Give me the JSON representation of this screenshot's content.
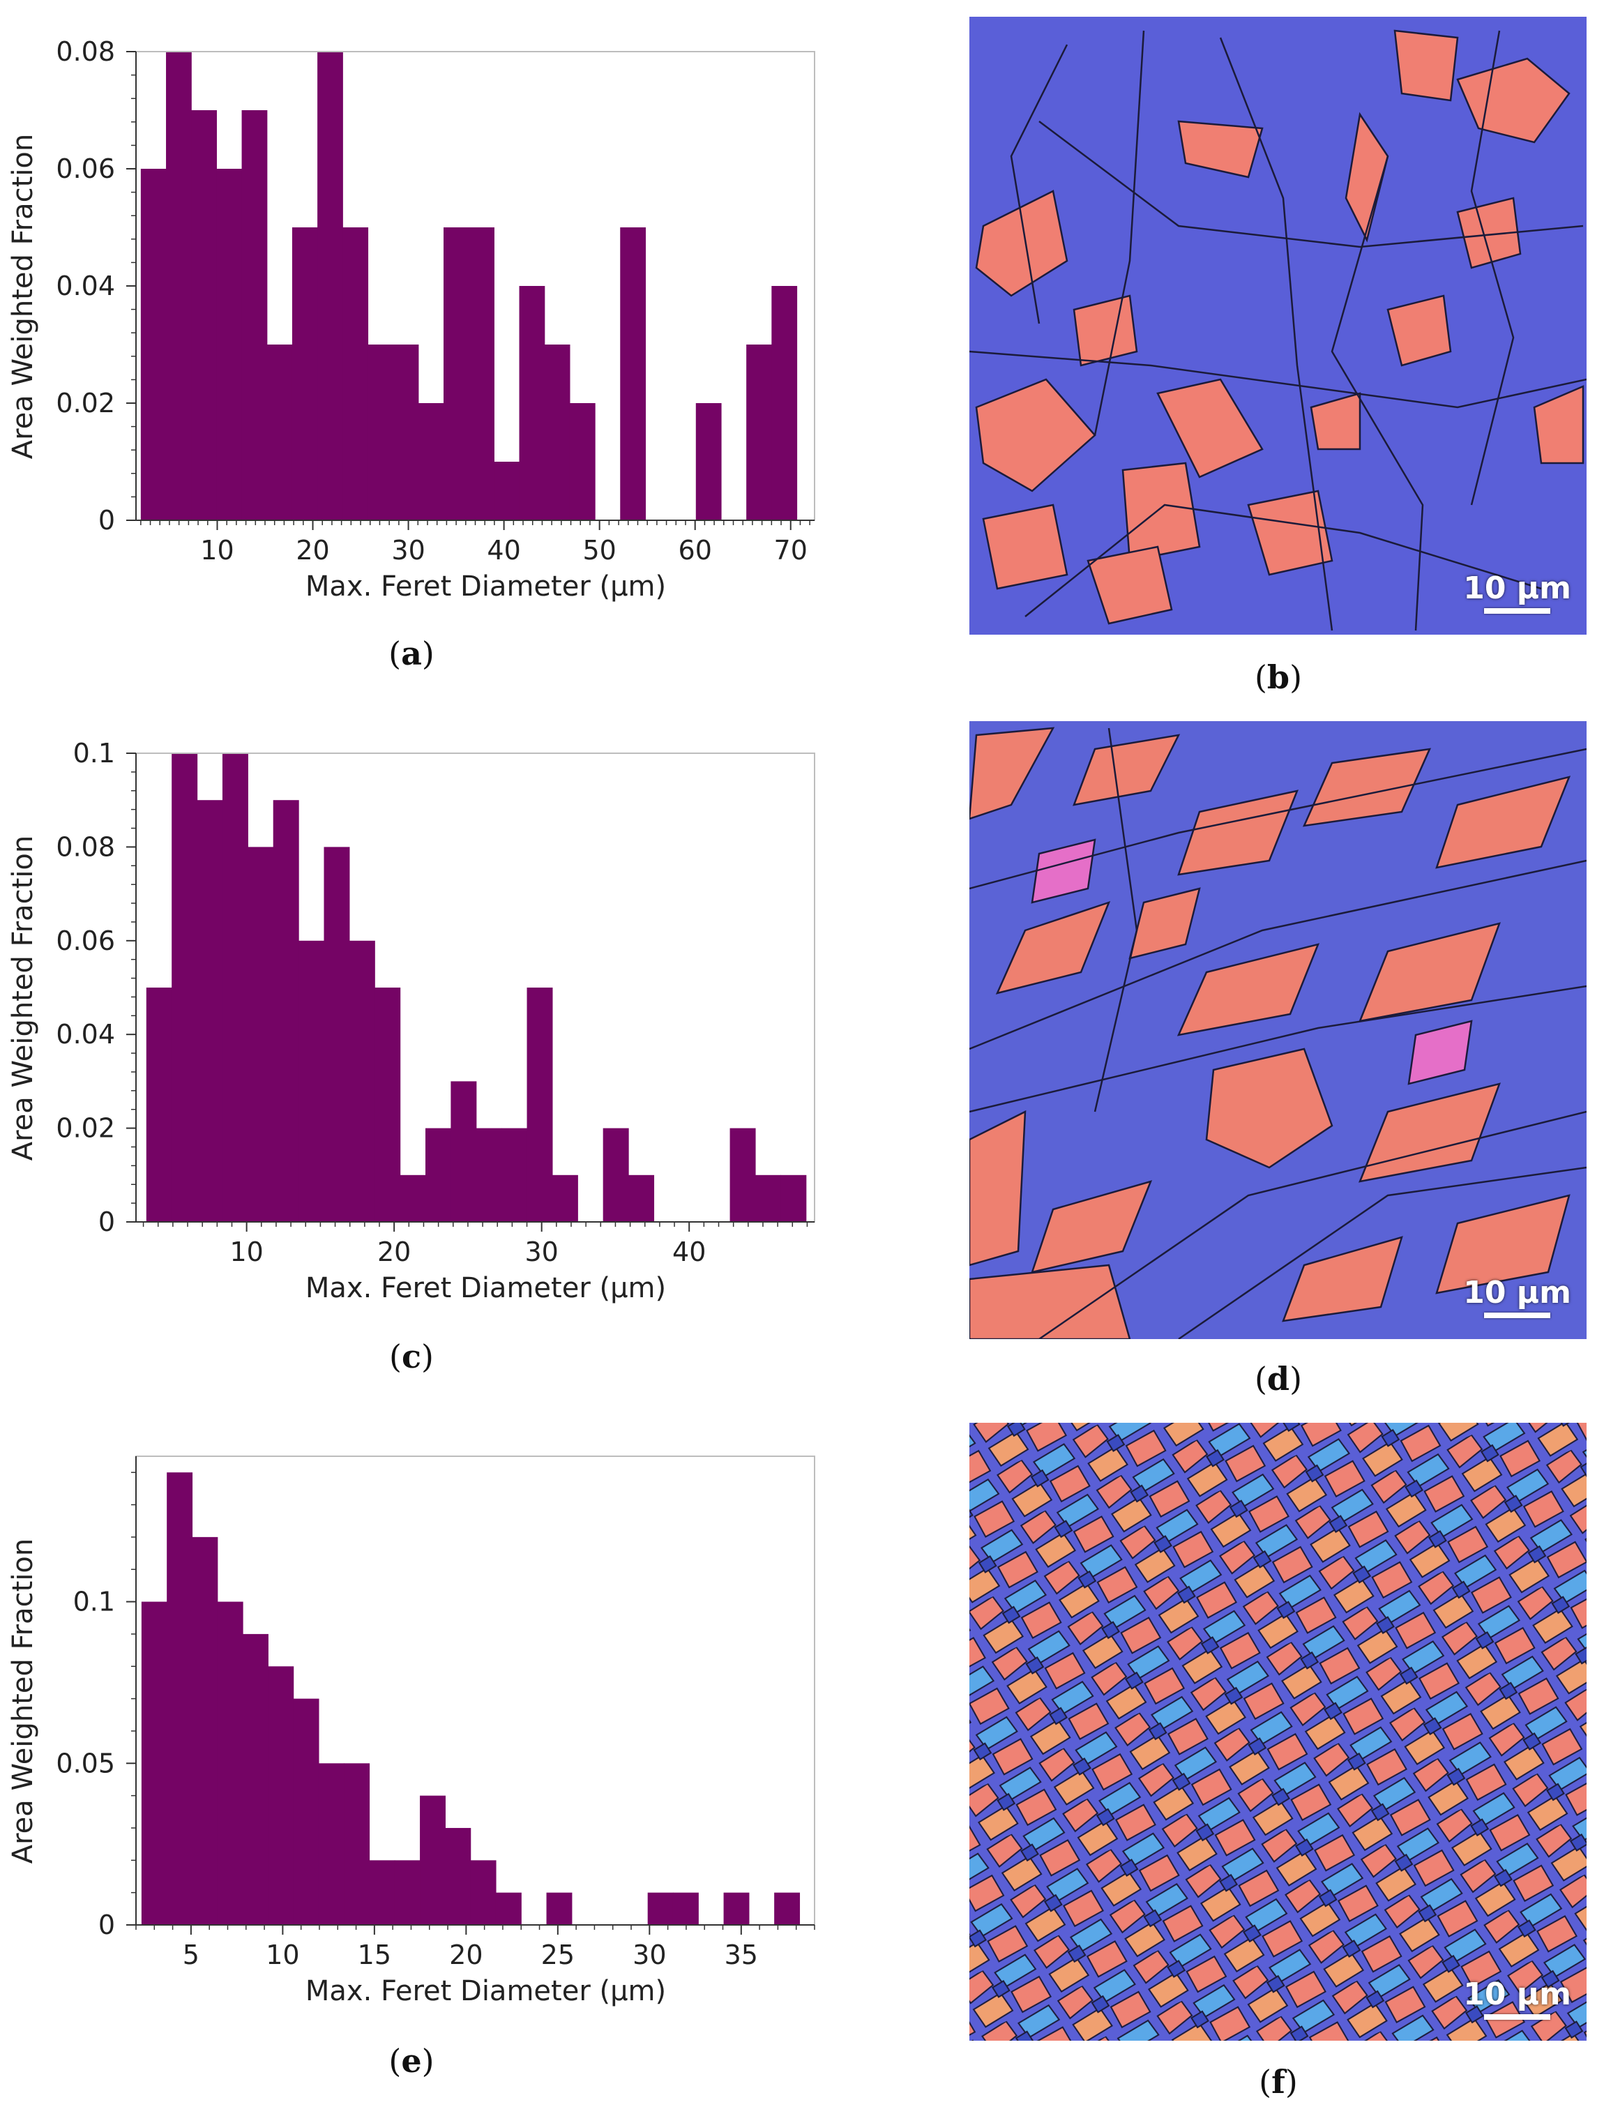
{
  "colors": {
    "bar": "#750465",
    "axis": "#333333"
  },
  "panels": {
    "a": {
      "label": "a"
    },
    "b": {
      "label": "b"
    },
    "c": {
      "label": "c"
    },
    "d": {
      "label": "d"
    },
    "e": {
      "label": "e"
    },
    "f": {
      "label": "f"
    }
  },
  "scale_bar_label": "10 μm",
  "chart_data": [
    {
      "id": "a",
      "type": "bar",
      "histogram": true,
      "xlabel": "Max. Feret Diameter (μm)",
      "ylabel": "Area Weighted Fraction",
      "xlim": [
        1.5,
        72.5
      ],
      "ylim": [
        0,
        0.08
      ],
      "xticks": [
        10,
        20,
        30,
        40,
        50,
        60,
        70
      ],
      "xtick_labels": [
        "10",
        "20",
        "30",
        "40",
        "50",
        "60",
        "70"
      ],
      "yticks": [
        0,
        0.02,
        0.04,
        0.06,
        0.08
      ],
      "ytick_labels": [
        "0",
        "0.02",
        "0.04",
        "0.06",
        "0.08"
      ],
      "bin_start": 2.0,
      "bin_width": 2.64,
      "values": [
        0.06,
        0.08,
        0.07,
        0.06,
        0.07,
        0.03,
        0.05,
        0.08,
        0.05,
        0.03,
        0.03,
        0.02,
        0.05,
        0.05,
        0.01,
        0.04,
        0.03,
        0.02,
        0,
        0.05,
        0,
        0,
        0.02,
        0,
        0.03,
        0.04
      ]
    },
    {
      "id": "c",
      "type": "bar",
      "histogram": true,
      "xlabel": "Max. Feret Diameter (μm)",
      "ylabel": "Area Weighted Fraction",
      "xlim": [
        2.5,
        48.5
      ],
      "ylim": [
        0,
        0.1
      ],
      "xticks": [
        10,
        20,
        30,
        40
      ],
      "xtick_labels": [
        "10",
        "20",
        "30",
        "40"
      ],
      "yticks": [
        0,
        0.02,
        0.04,
        0.06,
        0.08,
        0.1
      ],
      "ytick_labels": [
        "0",
        "0.02",
        "0.04",
        "0.06",
        "0.08",
        "0.1"
      ],
      "bin_start": 3.2,
      "bin_width": 1.72,
      "values": [
        0.05,
        0.1,
        0.09,
        0.1,
        0.08,
        0.09,
        0.06,
        0.08,
        0.06,
        0.05,
        0.01,
        0.02,
        0.03,
        0.02,
        0.02,
        0.05,
        0.01,
        0,
        0.02,
        0.01,
        0,
        0,
        0,
        0.02,
        0.01,
        0.01
      ]
    },
    {
      "id": "e",
      "type": "bar",
      "histogram": true,
      "xlabel": "Max. Feret Diameter (μm)",
      "ylabel": "Area Weighted Fraction",
      "xlim": [
        2.0,
        39.0
      ],
      "ylim": [
        0,
        0.145
      ],
      "xticks": [
        5,
        10,
        15,
        20,
        25,
        30,
        35
      ],
      "xtick_labels": [
        "5",
        "10",
        "15",
        "20",
        "25",
        "30",
        "35"
      ],
      "yticks": [
        0,
        0.05,
        0.1
      ],
      "ytick_labels": [
        "0",
        "0.05",
        "0.1"
      ],
      "bin_start": 2.3,
      "bin_width": 1.38,
      "values": [
        0.1,
        0.14,
        0.12,
        0.1,
        0.09,
        0.08,
        0.07,
        0.05,
        0.05,
        0.02,
        0.02,
        0.04,
        0.03,
        0.02,
        0.01,
        0,
        0.01,
        0,
        0,
        0,
        0.01,
        0.01,
        0,
        0.01,
        0,
        0.01
      ]
    }
  ]
}
